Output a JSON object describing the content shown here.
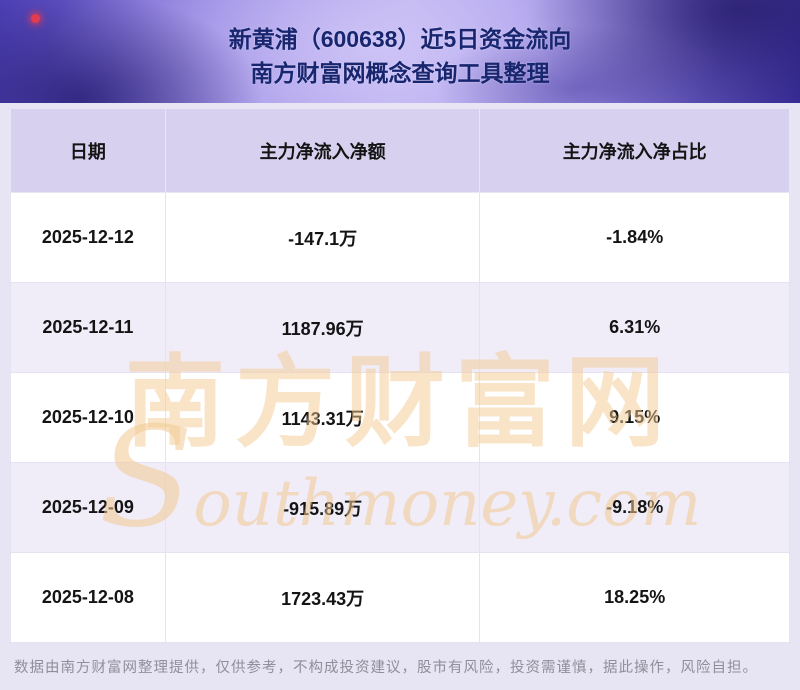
{
  "header": {
    "title_line1": "新黄浦（600638）近5日资金流向",
    "title_line2": "南方财富网概念查询工具整理"
  },
  "table": {
    "columns": [
      "日期",
      "主力净流入净额",
      "主力净流入净占比"
    ],
    "rows": [
      {
        "date": "2025-12-12",
        "amount": "-147.1万",
        "ratio": "-1.84%"
      },
      {
        "date": "2025-12-11",
        "amount": "1187.96万",
        "ratio": "6.31%"
      },
      {
        "date": "2025-12-10",
        "amount": "1143.31万",
        "ratio": "9.15%"
      },
      {
        "date": "2025-12-09",
        "amount": "-915.89万",
        "ratio": "-9.18%"
      },
      {
        "date": "2025-12-08",
        "amount": "1723.43万",
        "ratio": "18.25%"
      }
    ]
  },
  "chart_data": {
    "type": "table",
    "title": "新黄浦（600638）近5日资金流向",
    "subtitle": "南方财富网概念查询工具整理",
    "columns": [
      "日期",
      "主力净流入净额",
      "主力净流入净占比"
    ],
    "categories": [
      "2025-12-12",
      "2025-12-11",
      "2025-12-10",
      "2025-12-09",
      "2025-12-08"
    ],
    "series": [
      {
        "name": "主力净流入净额(万)",
        "values": [
          -147.1,
          1187.96,
          1143.31,
          -915.89,
          1723.43
        ]
      },
      {
        "name": "主力净流入净占比(%)",
        "values": [
          -1.84,
          6.31,
          9.15,
          -9.18,
          18.25
        ]
      }
    ]
  },
  "watermark": {
    "text_cn": "南方财富网",
    "text_en": "Southmoney.com"
  },
  "footer": {
    "disclaimer": "数据由南方财富网整理提供，仅供参考，不构成投资建议，股市有风险，投资需谨慎，据此操作，风险自担。"
  },
  "colors": {
    "title_text": "#18266f",
    "table_header_bg": "#d7d1ef",
    "row_alt_bg": "#f0edf9",
    "watermark": "#f3c992",
    "disclaimer_text": "#8f8f9a"
  }
}
